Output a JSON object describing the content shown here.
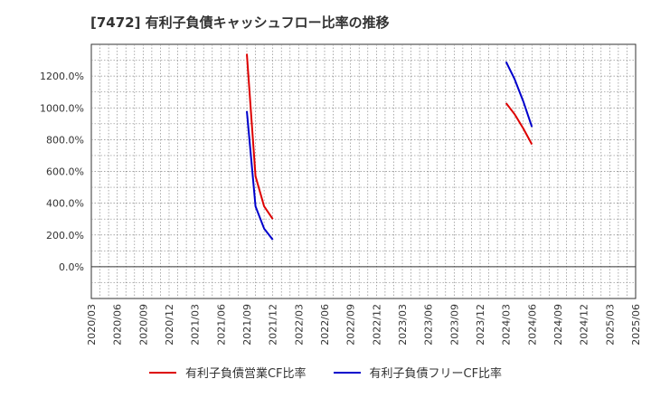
{
  "title": "[7472]  有利子負債キャッシュフロー比率の推移",
  "chart_data": {
    "type": "line",
    "ylim": [
      -200,
      1400
    ],
    "yticks": [
      0,
      200,
      400,
      600,
      800,
      1000,
      1200
    ],
    "ytick_labels": [
      "0.0%",
      "200.0%",
      "400.0%",
      "600.0%",
      "800.0%",
      "1000.0%",
      "1200.0%"
    ],
    "xticks": [
      "2020/03",
      "2020/06",
      "2020/09",
      "2020/12",
      "2021/03",
      "2021/06",
      "2021/09",
      "2021/12",
      "2022/03",
      "2022/06",
      "2022/09",
      "2022/12",
      "2023/03",
      "2023/06",
      "2023/09",
      "2023/12",
      "2024/03",
      "2024/06",
      "2024/09",
      "2024/12",
      "2025/03",
      "2025/06"
    ],
    "grid": true,
    "legend_position": "bottom",
    "series": [
      {
        "name": "有利子負債営業CF比率",
        "color": "#dd0000",
        "points": [
          {
            "x": "2021/09",
            "y": 1340
          },
          {
            "x": "2021/10",
            "y": 570
          },
          {
            "x": "2021/11",
            "y": 380
          },
          {
            "x": "2021/12",
            "y": 300
          },
          {
            "x": "2024/03",
            "y": 1030
          },
          {
            "x": "2024/04",
            "y": 960
          },
          {
            "x": "2024/05",
            "y": 870
          },
          {
            "x": "2024/06",
            "y": 770
          }
        ]
      },
      {
        "name": "有利子負債フリーCF比率",
        "color": "#0000cc",
        "points": [
          {
            "x": "2021/09",
            "y": 980
          },
          {
            "x": "2021/10",
            "y": 380
          },
          {
            "x": "2021/11",
            "y": 240
          },
          {
            "x": "2021/12",
            "y": 170
          },
          {
            "x": "2024/03",
            "y": 1290
          },
          {
            "x": "2024/04",
            "y": 1180
          },
          {
            "x": "2024/05",
            "y": 1040
          },
          {
            "x": "2024/06",
            "y": 880
          }
        ]
      }
    ]
  }
}
